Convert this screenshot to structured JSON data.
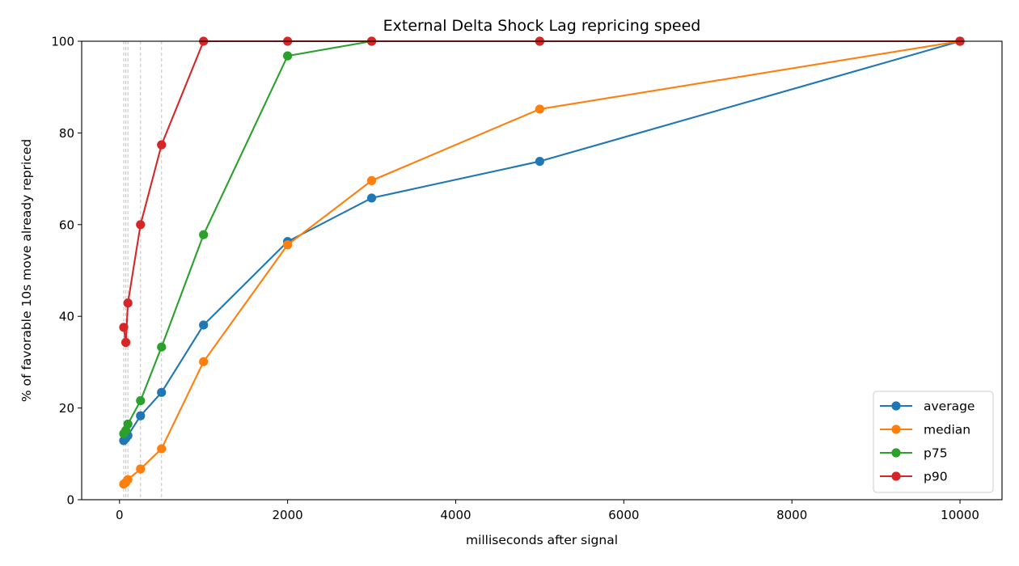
{
  "chart_data": {
    "type": "line",
    "title": "External Delta Shock Lag repricing speed",
    "xlabel": "milliseconds after signal",
    "ylabel": "% of favorable 10s move already repriced",
    "xlim": [
      -450,
      10500
    ],
    "ylim": [
      0,
      100
    ],
    "xticks": [
      "0",
      "2000",
      "4000",
      "6000",
      "8000",
      "10000"
    ],
    "yticks": [
      "0",
      "20",
      "40",
      "60",
      "80",
      "100"
    ],
    "grid": false,
    "legend_position": "lower-right",
    "reference_lines_x": [
      50,
      75,
      100,
      250,
      500
    ],
    "x": [
      50,
      75,
      100,
      250,
      500,
      1000,
      2000,
      3000,
      5000,
      10000
    ],
    "series": [
      {
        "name": "average",
        "color": "#1f77b4",
        "values": [
          12.9,
          13.4,
          14.0,
          18.3,
          23.4,
          38.1,
          56.3,
          65.8,
          73.8,
          100.0
        ]
      },
      {
        "name": "median",
        "color": "#ff7f0e",
        "values": [
          3.4,
          3.8,
          4.4,
          6.7,
          11.1,
          30.1,
          55.6,
          69.6,
          85.2,
          100.0
        ]
      },
      {
        "name": "p75",
        "color": "#2ca02c",
        "values": [
          14.4,
          15.1,
          16.5,
          21.6,
          33.3,
          57.8,
          96.8,
          100.0,
          100.0,
          100.0
        ]
      },
      {
        "name": "p90",
        "color": "#d62728",
        "values": [
          37.6,
          34.3,
          42.9,
          60.0,
          77.4,
          100.0,
          100.0,
          100.0,
          100.0,
          100.0
        ]
      }
    ]
  }
}
